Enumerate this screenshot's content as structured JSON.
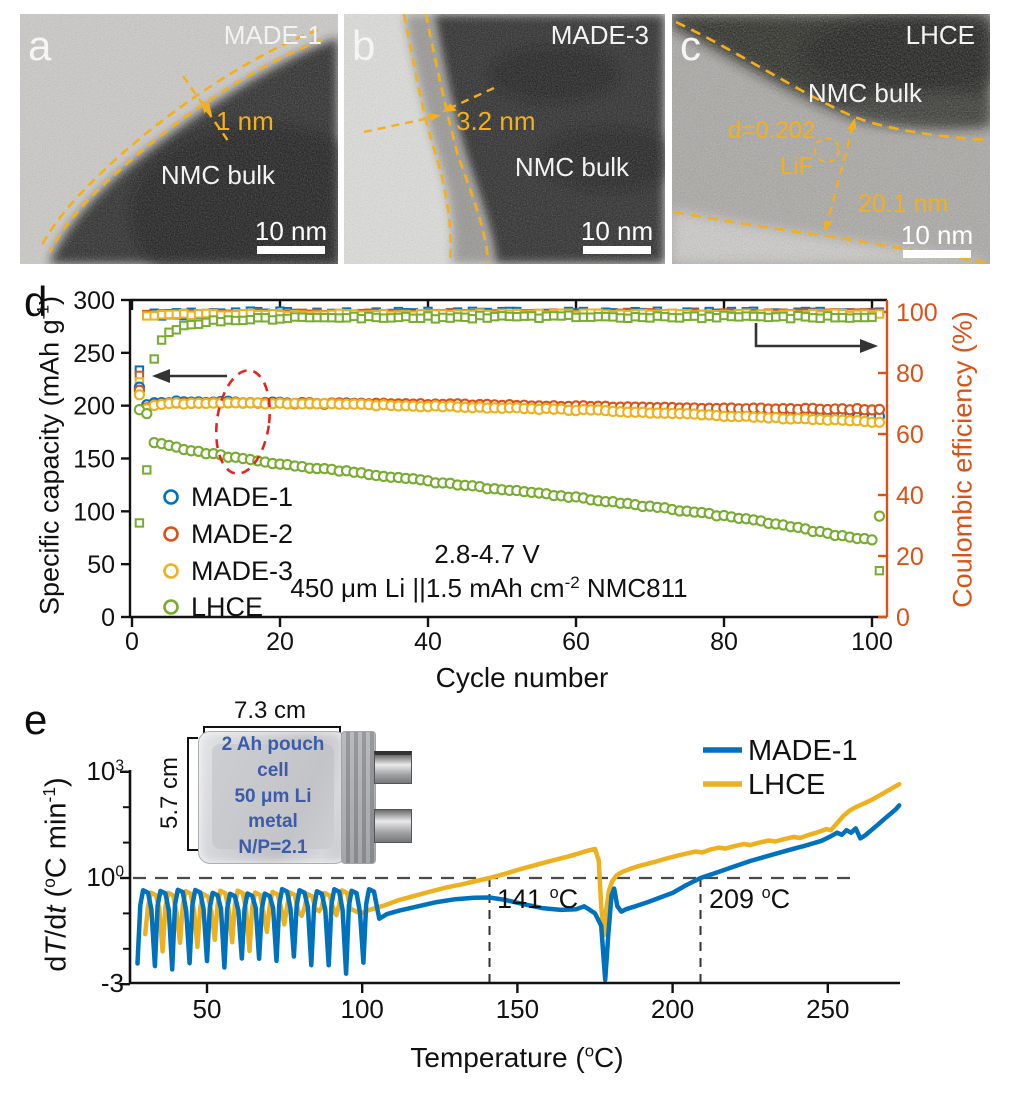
{
  "colors": {
    "blue": "#0072BD",
    "orange": "#D95319",
    "yellow": "#EDB120",
    "green": "#77AC30",
    "annotation_yellow": "#F3B01C",
    "right_axis": "#D95319",
    "red_dashed": "#E8231F"
  },
  "panels_tem": {
    "a": {
      "letter": "a",
      "sample": "MADE-1",
      "region": "NMC bulk",
      "measure": "1 nm",
      "scalebar": "10 nm"
    },
    "b": {
      "letter": "b",
      "sample": "MADE-3",
      "region": "NMC bulk",
      "measure": "3.2 nm",
      "scalebar": "10 nm"
    },
    "c": {
      "letter": "c",
      "sample": "LHCE",
      "region": "NMC bulk",
      "measure": "20.1 nm",
      "d_spacing": "d=0.202",
      "phase": "LiF",
      "scalebar": "10 nm"
    }
  },
  "panel_d_letter": "d",
  "panel_e_letter": "e",
  "chart_data": [
    {
      "panel": "d",
      "type": "scatter",
      "xlabel": "Cycle number",
      "ylabel_left": {
        "pre": "Specific capacity (mAh g",
        "sup": "-1",
        "post": ")"
      },
      "ylabel_right": "Coulombic efficiency (%)",
      "xlim": [
        0,
        102
      ],
      "ylim_left": [
        0,
        300
      ],
      "ylim_right": [
        0,
        100
      ],
      "xticks": [
        0,
        20,
        40,
        60,
        80,
        100
      ],
      "yticks_left": [
        0,
        50,
        100,
        150,
        200,
        250,
        300
      ],
      "yticks_right": [
        0,
        20,
        40,
        60,
        80,
        100
      ],
      "annotation": {
        "line1": "2.8-4.7 V",
        "line2_pre": "450 μm Li ||1.5 mAh cm",
        "line2_sup": "-2",
        "line2_post": " NMC811"
      },
      "capacity_series": [
        {
          "name": "MADE-1",
          "color": "#0072BD",
          "marker": "circle",
          "noise": 0.9,
          "seed": 6,
          "anchors": [
            [
              1,
              217
            ],
            [
              2,
              200
            ],
            [
              3,
              202
            ],
            [
              6,
              203.5
            ],
            [
              12,
              203.5
            ],
            [
              20,
              202.5
            ],
            [
              30,
              201.5
            ],
            [
              40,
              200.5
            ],
            [
              50,
              199
            ],
            [
              58,
              197.5
            ],
            [
              66,
              196
            ],
            [
              74,
              194.5
            ],
            [
              82,
              193
            ],
            [
              90,
              191.5
            ],
            [
              96,
              190
            ],
            [
              101,
              189.5
            ]
          ]
        },
        {
          "name": "MADE-2",
          "color": "#D95319",
          "marker": "circle",
          "noise": 0.6,
          "seed": 7,
          "anchors": [
            [
              1,
              214
            ],
            [
              2,
              198.5
            ],
            [
              3,
              201
            ],
            [
              6,
              202.5
            ],
            [
              12,
              203
            ],
            [
              20,
              202.5
            ],
            [
              30,
              202
            ],
            [
              40,
              201.5
            ],
            [
              50,
              200.5
            ],
            [
              60,
              199.5
            ],
            [
              70,
              198.5
            ],
            [
              80,
              197.5
            ],
            [
              90,
              197
            ],
            [
              101,
              196.5
            ]
          ]
        },
        {
          "name": "MADE-3",
          "color": "#EDB120",
          "marker": "circle",
          "noise": 0.7,
          "seed": 8,
          "anchors": [
            [
              1,
              211
            ],
            [
              2,
              197.5
            ],
            [
              3,
              200.5
            ],
            [
              6,
              202
            ],
            [
              12,
              202.5
            ],
            [
              20,
              202
            ],
            [
              30,
              201
            ],
            [
              40,
              199.5
            ],
            [
              50,
              198
            ],
            [
              60,
              196
            ],
            [
              70,
              193.5
            ],
            [
              80,
              190.5
            ],
            [
              90,
              187.5
            ],
            [
              101,
              184.5
            ]
          ]
        },
        {
          "name": "LHCE",
          "color": "#77AC30",
          "marker": "circle",
          "noise": 0.8,
          "seed": 9,
          "anchors": [
            [
              1,
              196
            ],
            [
              2,
              192
            ],
            [
              3,
              165
            ],
            [
              6,
              160
            ],
            [
              12,
              153
            ],
            [
              20,
              144.5
            ],
            [
              30,
              137
            ],
            [
              40,
              128.5
            ],
            [
              50,
              120.5
            ],
            [
              60,
              113
            ],
            [
              70,
              104.5
            ],
            [
              80,
              95.5
            ],
            [
              88,
              87
            ],
            [
              94,
              79
            ],
            [
              98,
              74.5
            ],
            [
              100,
              72.5
            ],
            [
              101,
              95
            ]
          ]
        }
      ],
      "efficiency_series": [
        {
          "name": "MADE-1",
          "color": "#0072BD",
          "marker": "square",
          "noise": 0.7,
          "seed": 2,
          "anchors": [
            [
              1,
              81
            ],
            [
              2,
              98.6
            ],
            [
              4,
              99.3
            ],
            [
              10,
              99.6
            ],
            [
              50,
              99.6
            ],
            [
              100,
              99.6
            ],
            [
              101,
              100
            ]
          ]
        },
        {
          "name": "MADE-2",
          "color": "#D95319",
          "marker": "square",
          "noise": 0.3,
          "seed": 3,
          "anchors": [
            [
              1,
              79
            ],
            [
              2,
              98.9
            ],
            [
              4,
              99.3
            ],
            [
              50,
              99.4
            ],
            [
              100,
              99.5
            ],
            [
              101,
              99.8
            ]
          ]
        },
        {
          "name": "MADE-3",
          "color": "#EDB120",
          "marker": "square",
          "noise": 0.4,
          "seed": 4,
          "anchors": [
            [
              1,
              77
            ],
            [
              2,
              98.7
            ],
            [
              4,
              99.2
            ],
            [
              50,
              99.3
            ],
            [
              100,
              99.2
            ],
            [
              101,
              99.5
            ]
          ]
        },
        {
          "name": "LHCE",
          "color": "#77AC30",
          "marker": "square",
          "noise": 0.55,
          "seed": 5,
          "anchors": [
            [
              1,
              31
            ],
            [
              2,
              48
            ],
            [
              3,
              85
            ],
            [
              4,
              90.5
            ],
            [
              5,
              93
            ],
            [
              7,
              95.5
            ],
            [
              10,
              96.8
            ],
            [
              15,
              97.6
            ],
            [
              30,
              98.2
            ],
            [
              60,
              98.4
            ],
            [
              100,
              98.3
            ],
            [
              101,
              15.5
            ]
          ]
        }
      ]
    },
    {
      "panel": "e",
      "type": "line",
      "xlabel": {
        "pre": "Temperature (",
        "sup": "o",
        "post": "C)"
      },
      "ylabel": {
        "p1": "d",
        "i1": "T",
        "p2": "/d",
        "i2": "t",
        "p3": " (",
        "sup1": "o",
        "p4": "C min",
        "sup2": "-1",
        "p5": ")"
      },
      "xlim": [
        25,
        273
      ],
      "xticks": [
        50,
        100,
        150,
        200,
        250
      ],
      "yticks": [
        {
          "base": "10",
          "sup": "3",
          "log": 3
        },
        {
          "base": "10",
          "sup": "0",
          "log": 0
        },
        {
          "base": "-3",
          "sup": "",
          "log": -3
        }
      ],
      "minor_tick_logs": [
        2,
        1,
        -1,
        -2
      ],
      "ref_line_log": 0,
      "events": [
        {
          "value": "141 ",
          "sup": "o",
          "unit": "C",
          "x": 141
        },
        {
          "value": "209 ",
          "sup": "o",
          "unit": "C",
          "x": 209
        }
      ],
      "series": [
        {
          "name": "MADE-1",
          "color": "#0072BD",
          "oscillation": {
            "t0": 27.6,
            "t1": 105,
            "period": 5.6,
            "peak": -0.38,
            "dip": -2.45,
            "seed": 11
          },
          "anchors": [
            [
              105.5,
              -1.15
            ],
            [
              108,
              -1.02
            ],
            [
              112,
              -0.92
            ],
            [
              118,
              -0.8
            ],
            [
              124,
              -0.68
            ],
            [
              130,
              -0.6
            ],
            [
              136,
              -0.56
            ],
            [
              141,
              -0.55
            ],
            [
              146,
              -0.62
            ],
            [
              152,
              -0.74
            ],
            [
              158,
              -0.85
            ],
            [
              164,
              -0.9
            ],
            [
              169,
              -0.88
            ],
            [
              171.5,
              -0.8
            ],
            [
              173,
              -0.88
            ],
            [
              175,
              -1.0
            ],
            [
              177,
              -1.35
            ],
            [
              178.3,
              -2.88
            ],
            [
              179.3,
              -1.6
            ],
            [
              180.3,
              -0.5
            ],
            [
              181.2,
              -0.3
            ],
            [
              182.2,
              -0.8
            ],
            [
              183.5,
              -0.95
            ],
            [
              185,
              -0.88
            ],
            [
              188,
              -0.8
            ],
            [
              192,
              -0.68
            ],
            [
              196,
              -0.55
            ],
            [
              200,
              -0.42
            ],
            [
              204,
              -0.22
            ],
            [
              209,
              0.0
            ],
            [
              214,
              0.15
            ],
            [
              219,
              0.3
            ],
            [
              225,
              0.48
            ],
            [
              231,
              0.63
            ],
            [
              237,
              0.78
            ],
            [
              243,
              0.92
            ],
            [
              248,
              1.05
            ],
            [
              251,
              1.18
            ],
            [
              253,
              1.28
            ],
            [
              254.5,
              1.22
            ],
            [
              256,
              1.35
            ],
            [
              257.5,
              1.28
            ],
            [
              259,
              1.4
            ],
            [
              260.5,
              1.12
            ],
            [
              262,
              1.2
            ],
            [
              264,
              1.35
            ],
            [
              266,
              1.5
            ],
            [
              268,
              1.65
            ],
            [
              270,
              1.8
            ],
            [
              272,
              1.95
            ],
            [
              273,
              2.05
            ]
          ]
        },
        {
          "name": "LHCE",
          "color": "#EDB120",
          "oscillation": {
            "t0": 30.1,
            "t1": 99,
            "period": 5.6,
            "peak": -0.4,
            "dip": -1.8,
            "dip_shallow": -1.15,
            "shallow_range": [
              72,
              93
            ],
            "seed": 5
          },
          "anchors": [
            [
              99.5,
              -1.0
            ],
            [
              103,
              -0.88
            ],
            [
              107,
              -0.78
            ],
            [
              112,
              -0.62
            ],
            [
              117,
              -0.5
            ],
            [
              122,
              -0.38
            ],
            [
              127,
              -0.27
            ],
            [
              132,
              -0.18
            ],
            [
              136,
              -0.1
            ],
            [
              141,
              0.0
            ],
            [
              146,
              0.12
            ],
            [
              151,
              0.25
            ],
            [
              156,
              0.37
            ],
            [
              161,
              0.49
            ],
            [
              166,
              0.6
            ],
            [
              170,
              0.7
            ],
            [
              173,
              0.78
            ],
            [
              175,
              0.82
            ],
            [
              176.2,
              0.5
            ],
            [
              177,
              -0.8
            ],
            [
              177.8,
              -1.62
            ],
            [
              178.6,
              -0.9
            ],
            [
              179.5,
              -0.35
            ],
            [
              180.5,
              -0.1
            ],
            [
              182,
              0.08
            ],
            [
              184,
              0.18
            ],
            [
              187,
              0.28
            ],
            [
              190,
              0.36
            ],
            [
              194,
              0.45
            ],
            [
              198,
              0.55
            ],
            [
              202,
              0.64
            ],
            [
              205,
              0.7
            ],
            [
              207.5,
              0.75
            ],
            [
              209.5,
              0.72
            ],
            [
              212,
              0.8
            ],
            [
              215,
              0.86
            ],
            [
              217,
              0.83
            ],
            [
              220,
              0.9
            ],
            [
              223,
              0.96
            ],
            [
              225,
              0.93
            ],
            [
              228,
              1.0
            ],
            [
              231,
              1.06
            ],
            [
              233,
              1.03
            ],
            [
              236,
              1.1
            ],
            [
              239,
              1.16
            ],
            [
              241,
              1.13
            ],
            [
              244,
              1.22
            ],
            [
              247,
              1.3
            ],
            [
              249.5,
              1.38
            ],
            [
              251,
              1.35
            ],
            [
              253,
              1.55
            ],
            [
              255,
              1.75
            ],
            [
              257,
              1.9
            ],
            [
              259,
              2.0
            ],
            [
              261,
              2.08
            ],
            [
              264,
              2.2
            ],
            [
              267,
              2.35
            ],
            [
              270,
              2.5
            ],
            [
              273,
              2.65
            ]
          ]
        }
      ],
      "inset": {
        "width_label": "7.3 cm",
        "height_label": "5.7 cm",
        "lines": [
          "2 Ah pouch cell",
          "50 μm Li metal",
          "N/P=2.1"
        ]
      }
    }
  ]
}
